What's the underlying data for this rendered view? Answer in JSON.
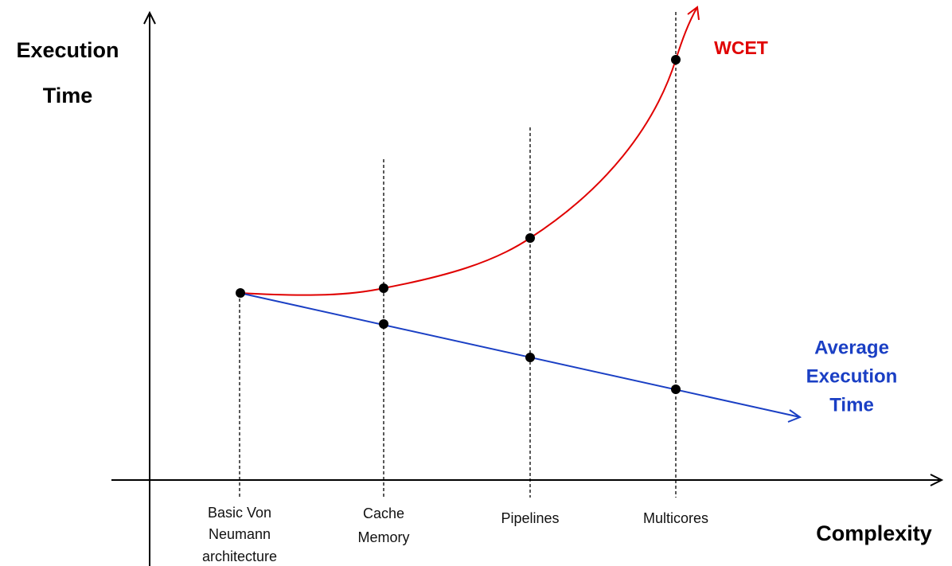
{
  "axes": {
    "y_label_lines": [
      "Execution",
      "Time"
    ],
    "x_label": "Complexity"
  },
  "categories": [
    [
      "Basic Von",
      "Neumann",
      "architecture"
    ],
    [
      "Cache",
      "Memory"
    ],
    [
      "Pipelines"
    ],
    [
      "Multicores"
    ]
  ],
  "curves": [
    {
      "label_lines": [
        "WCET"
      ]
    },
    {
      "label_lines": [
        "Average",
        "Execution",
        "Time"
      ]
    }
  ]
}
